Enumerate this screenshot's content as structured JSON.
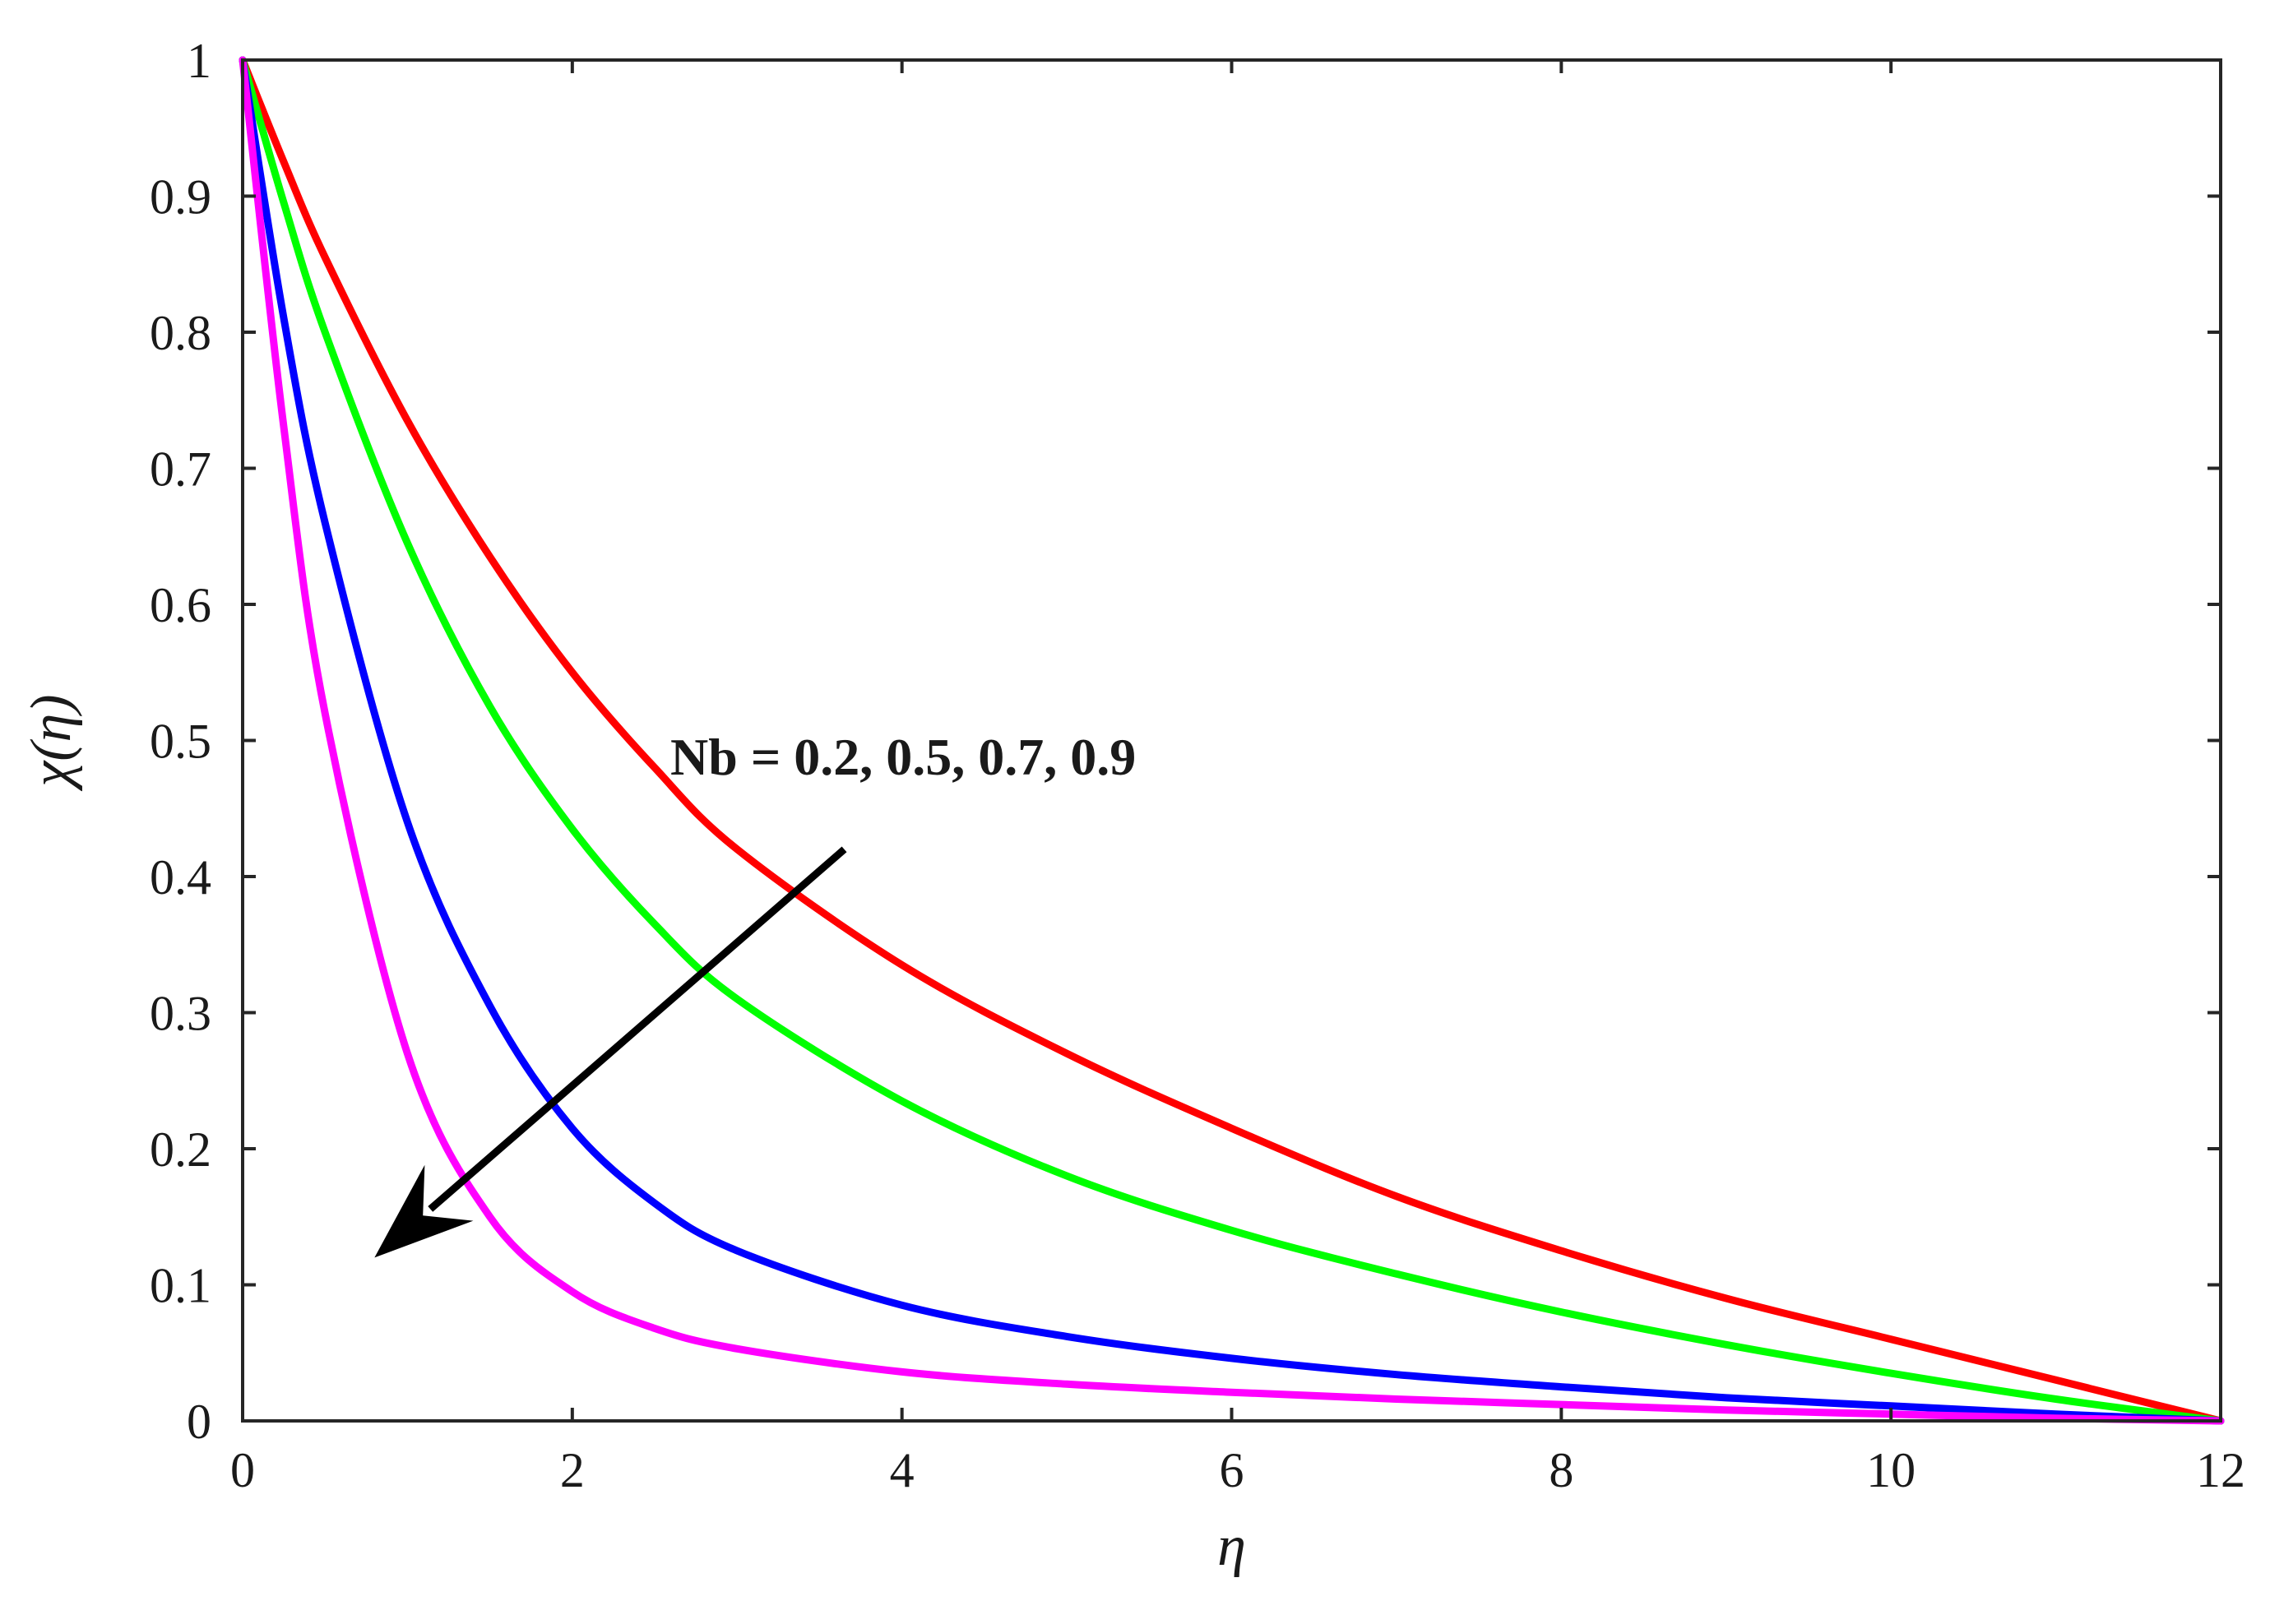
{
  "chart_data": {
    "type": "line",
    "xlabel": "η",
    "ylabel": "χ(η)",
    "xlim": [
      0,
      12
    ],
    "ylim": [
      0,
      1
    ],
    "xticks": [
      0,
      2,
      4,
      6,
      8,
      10,
      12
    ],
    "yticks": [
      0,
      0.1,
      0.2,
      0.3,
      0.4,
      0.5,
      0.6,
      0.7,
      0.8,
      0.9,
      1
    ],
    "xtick_labels": [
      "0",
      "2",
      "4",
      "6",
      "8",
      "10",
      "12"
    ],
    "ytick_labels": [
      "0",
      "0.1",
      "0.2",
      "0.3",
      "0.4",
      "0.5",
      "0.6",
      "0.7",
      "0.8",
      "0.9",
      "1"
    ],
    "grid": false,
    "annotation": {
      "text": "Nb = 0.2, 0.5, 0.7, 0.9",
      "arrow_from": [
        3.65,
        0.42
      ],
      "arrow_to": [
        0.8,
        0.12
      ]
    },
    "x": [
      0,
      0.25,
      0.5,
      1,
      1.5,
      2,
      2.5,
      3,
      4,
      5,
      6,
      7,
      8,
      9,
      10,
      11,
      12
    ],
    "series": [
      {
        "color": "#ff0000",
        "values": [
          1.0,
          0.925,
          0.855,
          0.735,
          0.635,
          0.55,
          0.48,
          0.42,
          0.335,
          0.27,
          0.215,
          0.165,
          0.125,
          0.09,
          0.06,
          0.03,
          0.0
        ]
      },
      {
        "color": "#00ff00",
        "values": [
          1.0,
          0.895,
          0.8,
          0.645,
          0.525,
          0.435,
          0.365,
          0.31,
          0.235,
          0.18,
          0.14,
          0.108,
          0.08,
          0.056,
          0.035,
          0.016,
          0.0
        ]
      },
      {
        "color": "#0000ff",
        "values": [
          1.0,
          0.81,
          0.66,
          0.44,
          0.305,
          0.215,
          0.16,
          0.125,
          0.085,
          0.062,
          0.046,
          0.034,
          0.025,
          0.017,
          0.011,
          0.005,
          0.0
        ]
      },
      {
        "color": "#ff00ff",
        "values": [
          1.0,
          0.73,
          0.52,
          0.27,
          0.15,
          0.095,
          0.068,
          0.053,
          0.036,
          0.027,
          0.021,
          0.016,
          0.012,
          0.008,
          0.005,
          0.002,
          0.0
        ]
      }
    ]
  }
}
